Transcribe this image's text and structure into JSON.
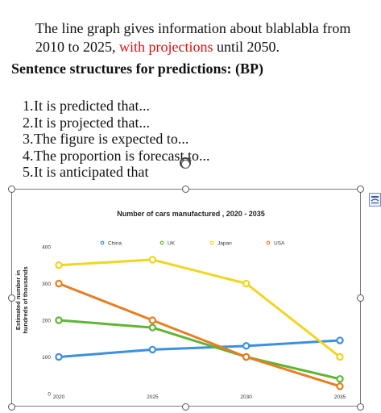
{
  "intro": {
    "before": "The line graph gives information about blablabla from 2010 to 2025, ",
    "highlight": "with projections",
    "after": " until 2050."
  },
  "heading": "Sentence structures for predictions: (BP)",
  "sentences": [
    {
      "num": "1.",
      "text": "It is predicted that..."
    },
    {
      "num": "2.",
      "text": "It is projected that..."
    },
    {
      "num": "3.",
      "text": "The figure is expected to..."
    },
    {
      "num": "4.",
      "text": "The proportion is forecast to..."
    },
    {
      "num": "5.",
      "text": "It is anticipated that"
    }
  ],
  "colors": {
    "China": "#3d8fe0",
    "UK": "#5fb536",
    "Japan": "#f2d520",
    "USA": "#e67e22"
  },
  "icons": {
    "cursor": "rotate-cursor-icon",
    "layout": "layout-options-icon"
  },
  "chart_data": {
    "type": "line",
    "title": "Number of cars manufactured , 2020 - 2035",
    "xlabel": "",
    "ylabel_lines": [
      "Estimated number in",
      "hundreds of thousands"
    ],
    "x": [
      "2020",
      "2025",
      "2030",
      "2035"
    ],
    "ylim": [
      0,
      400
    ],
    "yticks": [
      0,
      100,
      200,
      300,
      400
    ],
    "legend_position": "top",
    "grid": false,
    "series": [
      {
        "name": "China",
        "values": [
          100,
          120,
          130,
          145
        ]
      },
      {
        "name": "UK",
        "values": [
          200,
          180,
          100,
          40
        ]
      },
      {
        "name": "Japan",
        "values": [
          350,
          365,
          300,
          100
        ]
      },
      {
        "name": "USA",
        "values": [
          300,
          200,
          100,
          20
        ]
      }
    ]
  }
}
